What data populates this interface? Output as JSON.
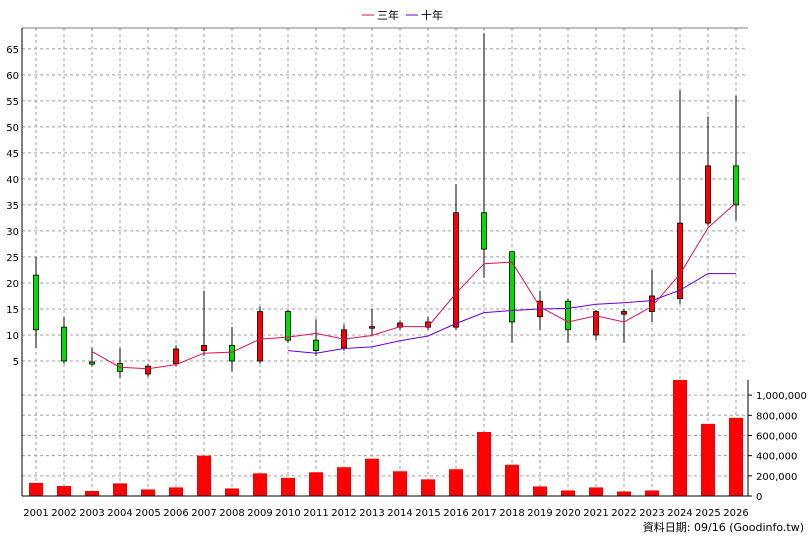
{
  "legend": {
    "items": [
      {
        "label": "三年",
        "color": "#e0105a"
      },
      {
        "label": "十年",
        "color": "#6a00d0"
      }
    ]
  },
  "source_note": "資料日期: 09/16 (Goodinfo.tw)",
  "colors": {
    "up": "#ff0000",
    "down": "#00dd00",
    "wick": "#000000",
    "volume": "#ff0000",
    "grid": "#a0a0a0"
  },
  "chart_data": [
    {
      "type": "candlestick",
      "categories": [
        "2001",
        "2002",
        "2003",
        "2004",
        "2005",
        "2006",
        "2007",
        "2008",
        "2009",
        "2010",
        "2011",
        "2012",
        "2013",
        "2014",
        "2015",
        "2016",
        "2017",
        "2018",
        "2019",
        "2020",
        "2021",
        "2022",
        "2023",
        "2024",
        "2025",
        "2026"
      ],
      "y_ticks": [
        5,
        10,
        15,
        20,
        25,
        30,
        35,
        40,
        45,
        50,
        55,
        60,
        65
      ],
      "ylim": [
        0,
        69
      ],
      "candles": [
        {
          "open": 21.5,
          "close": 11,
          "high": 25,
          "low": 7.5
        },
        {
          "open": 11.5,
          "close": 5,
          "high": 13.5,
          "low": 4.5
        },
        {
          "open": 4.8,
          "close": 4.4,
          "high": 7.5,
          "low": 4
        },
        {
          "open": 4.5,
          "close": 3,
          "high": 7.5,
          "low": 1.8
        },
        {
          "open": 2.5,
          "close": 4,
          "high": 4.5,
          "low": 2
        },
        {
          "open": 4.5,
          "close": 7.3,
          "high": 8,
          "low": 4
        },
        {
          "open": 7,
          "close": 8,
          "high": 18.5,
          "low": 6
        },
        {
          "open": 8,
          "close": 5,
          "high": 11.5,
          "low": 3
        },
        {
          "open": 5,
          "close": 14.5,
          "high": 15.5,
          "low": 4.5
        },
        {
          "open": 14.5,
          "close": 9,
          "high": 14.8,
          "low": 8.5
        },
        {
          "open": 9,
          "close": 7,
          "high": 13,
          "low": 6
        },
        {
          "open": 7.5,
          "close": 11,
          "high": 12,
          "low": 7
        },
        {
          "open": 11.3,
          "close": 11.6,
          "high": 15,
          "low": 10
        },
        {
          "open": 11.5,
          "close": 12.3,
          "high": 12.8,
          "low": 11
        },
        {
          "open": 11.5,
          "close": 12.5,
          "high": 13.5,
          "low": 11
        },
        {
          "open": 11.5,
          "close": 33.5,
          "high": 39,
          "low": 11
        },
        {
          "open": 33.5,
          "close": 26.5,
          "high": 68,
          "low": 21
        },
        {
          "open": 26,
          "close": 12.5,
          "high": 26,
          "low": 8.5
        },
        {
          "open": 13.5,
          "close": 16.5,
          "high": 18.5,
          "low": 11
        },
        {
          "open": 16.5,
          "close": 11,
          "high": 17,
          "low": 8.5
        },
        {
          "open": 10,
          "close": 14.5,
          "high": 14.8,
          "low": 9
        },
        {
          "open": 14,
          "close": 14.5,
          "high": 15,
          "low": 8.5
        },
        {
          "open": 14.5,
          "close": 17.5,
          "high": 22.5,
          "low": 12.5
        },
        {
          "open": 17,
          "close": 31.5,
          "high": 57,
          "low": 16
        },
        {
          "open": 31.5,
          "close": 42.5,
          "high": 52,
          "low": 31
        },
        {
          "open": 42.5,
          "close": 35,
          "high": 56,
          "low": 32
        }
      ],
      "series": [
        {
          "name": "三年",
          "values": [
            null,
            null,
            6.8,
            3.8,
            3.5,
            4.3,
            6.5,
            6.7,
            9.2,
            9.6,
            10.3,
            9.2,
            9.9,
            11.6,
            11.6,
            18.0,
            23.7,
            24.0,
            15.4,
            12.5,
            13.7,
            12.5,
            15.5,
            21.7,
            30.6,
            35.4
          ]
        },
        {
          "name": "十年",
          "values": [
            null,
            null,
            null,
            null,
            null,
            null,
            null,
            null,
            null,
            7.0,
            6.5,
            7.4,
            7.7,
            8.9,
            9.8,
            12.2,
            14.3,
            14.7,
            15.0,
            15.1,
            15.9,
            16.2,
            16.6,
            18.6,
            21.8,
            21.8
          ]
        }
      ]
    },
    {
      "type": "bar",
      "categories": [
        "2001",
        "2002",
        "2003",
        "2004",
        "2005",
        "2006",
        "2007",
        "2008",
        "2009",
        "2010",
        "2011",
        "2012",
        "2013",
        "2014",
        "2015",
        "2016",
        "2017",
        "2018",
        "2019",
        "2020",
        "2021",
        "2022",
        "2023",
        "2024",
        "2025",
        "2026"
      ],
      "values": [
        130000,
        100000,
        50000,
        125000,
        65000,
        85000,
        400000,
        75000,
        225000,
        180000,
        235000,
        285000,
        370000,
        245000,
        165000,
        265000,
        635000,
        310000,
        95000,
        55000,
        85000,
        45000,
        55000,
        1150000,
        715000,
        775000
      ],
      "y_ticks": [
        0,
        200000,
        400000,
        600000,
        800000,
        1000000
      ],
      "y_tick_labels": [
        "0",
        "200,000",
        "400,000",
        "600,000",
        "800,000",
        "1,000,000"
      ],
      "ylim": [
        0,
        1150000
      ]
    }
  ]
}
